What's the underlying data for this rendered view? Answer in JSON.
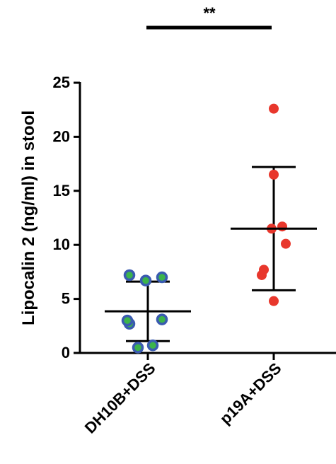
{
  "chart_data": {
    "type": "scatter",
    "ylabel": "Lipocalin 2 (ng/ml) in stool",
    "xlabel": "",
    "title": "",
    "ylim": [
      0,
      25
    ],
    "yticks": [
      "0",
      "5",
      "10",
      "15",
      "20",
      "25"
    ],
    "categories": [
      "DH10B+DSS",
      "p19A+DSS"
    ],
    "series": [
      {
        "category": "DH10B+DSS",
        "points": [
          0.5,
          0.7,
          2.7,
          3.0,
          3.1,
          6.7,
          7.0,
          7.2
        ],
        "mean": 3.85,
        "sd_upper": 6.6,
        "sd_lower": 1.1,
        "fill": "#3cb44b",
        "stroke": "#3a5bb0"
      },
      {
        "category": "p19A+DSS",
        "points": [
          4.8,
          7.2,
          7.7,
          10.1,
          11.5,
          11.7,
          16.5,
          22.6
        ],
        "mean": 11.5,
        "sd_upper": 17.2,
        "sd_lower": 5.8,
        "fill": "#e8372c",
        "stroke": "#e8372c"
      }
    ],
    "significance": {
      "label": "**",
      "between": [
        "DH10B+DSS",
        "p19A+DSS"
      ]
    }
  }
}
